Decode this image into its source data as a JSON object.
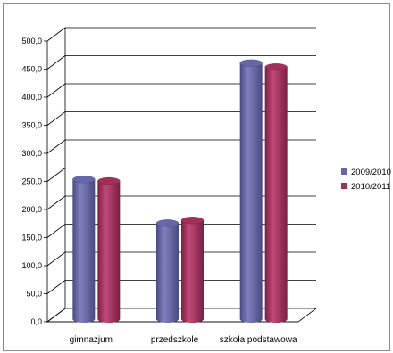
{
  "chart_data": {
    "type": "bar",
    "title": "",
    "xlabel": "",
    "ylabel": "",
    "categories": [
      "gimnazjum",
      "przedszkole",
      "szkoła podstawowa"
    ],
    "series": [
      {
        "name": "2009/2010",
        "values": [
          243,
          165,
          450
        ],
        "color": "#6666aa"
      },
      {
        "name": "2010/2011",
        "values": [
          240,
          170,
          443
        ],
        "color": "#a0305a"
      }
    ],
    "ylim": [
      0,
      500
    ],
    "yticks": [
      "0,0",
      "50,0",
      "100,0",
      "150,0",
      "200,0",
      "250,0",
      "300,0",
      "350,0",
      "400,0",
      "450,0",
      "500,0"
    ],
    "grid": true,
    "legend": "right",
    "three_d": true
  }
}
